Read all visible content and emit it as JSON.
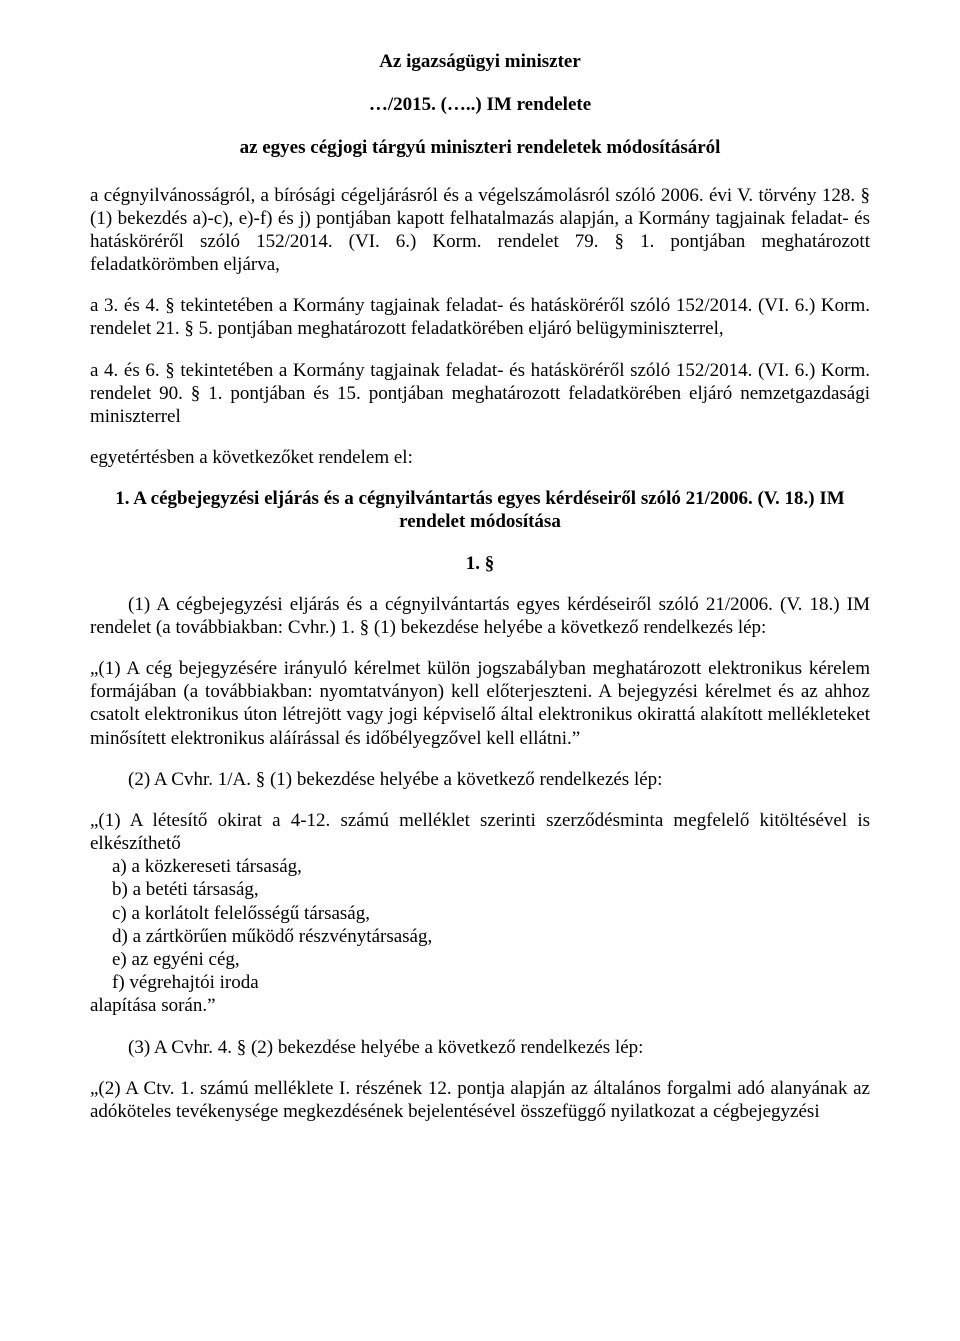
{
  "doc": {
    "title1": "Az igazságügyi miniszter",
    "title2": "…/2015. (…..) IM rendelete",
    "title3": "az egyes cégjogi tárgyú miniszteri rendeletek módosításáról",
    "p1": "a cégnyilvánosságról, a bírósági cégeljárásról és a végelszámolásról szóló 2006. évi V. törvény 128. § (1) bekezdés a)-c), e)-f) és j) pontjában kapott felhatalmazás alapján, a Kormány tagjainak feladat- és hatásköréről szóló 152/2014. (VI. 6.) Korm. rendelet 79. § 1. pontjában meghatározott feladatkörömben eljárva,",
    "p2": "a 3. és 4. § tekintetében a Kormány tagjainak feladat- és hatásköréről szóló 152/2014. (VI. 6.) Korm. rendelet 21. § 5. pontjában meghatározott feladatkörében eljáró belügyminiszterrel,",
    "p3": "a 4. és 6. § tekintetében a Kormány tagjainak feladat- és hatásköréről szóló 152/2014. (VI. 6.) Korm. rendelet 90. § 1. pontjában és 15. pontjában meghatározott feladatkörében eljáró nemzetgazdasági miniszterrel",
    "p4": "egyetértésben a következőket rendelem el:",
    "sec1_heading": "1. A cégbejegyzési eljárás és a cégnyilvántartás egyes kérdéseiről szóló 21/2006. (V. 18.) IM rendelet módosítása",
    "sec1_num": "1. §",
    "sec1_p1": "(1) A cégbejegyzési eljárás és a cégnyilvántartás egyes kérdéseiről szóló 21/2006. (V. 18.) IM rendelet (a továbbiakban: Cvhr.) 1. § (1) bekezdése helyébe a következő rendelkezés lép:",
    "sec1_q1": "„(1) A cég bejegyzésére irányuló kérelmet külön jogszabályban meghatározott elektronikus kérelem formájában (a továbbiakban: nyomtatványon) kell előterjeszteni. A bejegyzési kérelmet és az ahhoz csatolt elektronikus úton létrejött vagy jogi képviselő által elektronikus okirattá alakított mellékleteket minősített elektronikus aláírással és időbélyegzővel kell ellátni.”",
    "sec1_p2": "(2) A Cvhr. 1/A. § (1) bekezdése helyébe a következő rendelkezés lép:",
    "sec1_q2_lead": "„(1) A létesítő okirat a 4-12. számú melléklet szerinti szerződésminta megfelelő kitöltésével is elkészíthető",
    "sec1_q2_items": [
      "a) a közkereseti társaság,",
      "b) a betéti társaság,",
      "c) a korlátolt felelősségű társaság,",
      "d) a zártkörűen működő részvénytársaság,",
      "e) az egyéni cég,",
      "f) végrehajtói iroda"
    ],
    "sec1_q2_tail": "alapítása során.”",
    "sec1_p3": "(3) A Cvhr. 4. § (2) bekezdése helyébe a következő rendelkezés lép:",
    "sec1_q3": "„(2) A Ctv. 1. számú melléklete I. részének 12. pontja alapján az általános forgalmi adó alanyának az adóköteles tevékenysége megkezdésének bejelentésével összefüggő nyilatkozat a cégbejegyzési"
  }
}
